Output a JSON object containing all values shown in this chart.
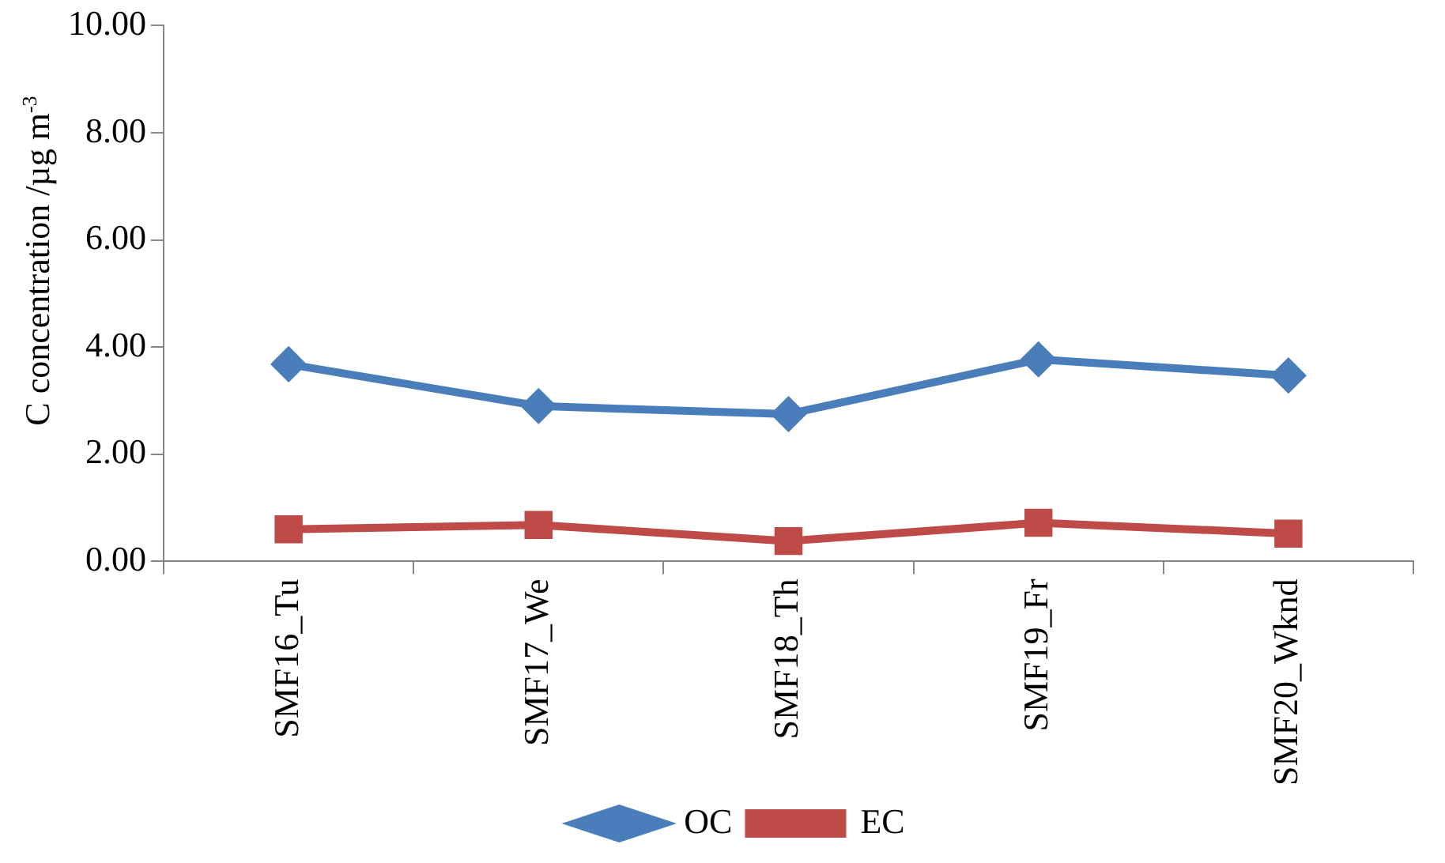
{
  "chart_data": {
    "type": "line",
    "ylabel": "C concentration /µg m$^{-3}$",
    "categories": [
      "SMF16_Tu",
      "SMF17_We",
      "SMF18_Th",
      "SMF19_Fr",
      "SMF20_Wknd"
    ],
    "series": [
      {
        "name": "OC",
        "color": "#4a7ebb",
        "marker": "diamond",
        "values": [
          3.68,
          2.9,
          2.75,
          3.77,
          3.47
        ]
      },
      {
        "name": "EC",
        "color": "#be4b48",
        "marker": "square",
        "values": [
          0.6,
          0.68,
          0.38,
          0.72,
          0.52
        ]
      }
    ],
    "ylim": [
      0,
      10
    ],
    "yticks": [
      {
        "value": 0,
        "label": "0.00"
      },
      {
        "value": 2,
        "label": "2.00"
      },
      {
        "value": 4,
        "label": "4.00"
      },
      {
        "value": 6,
        "label": "6.00"
      },
      {
        "value": 8,
        "label": "8.00"
      },
      {
        "value": 10,
        "label": "10.00"
      }
    ],
    "grid": false,
    "legend": "bottom"
  }
}
